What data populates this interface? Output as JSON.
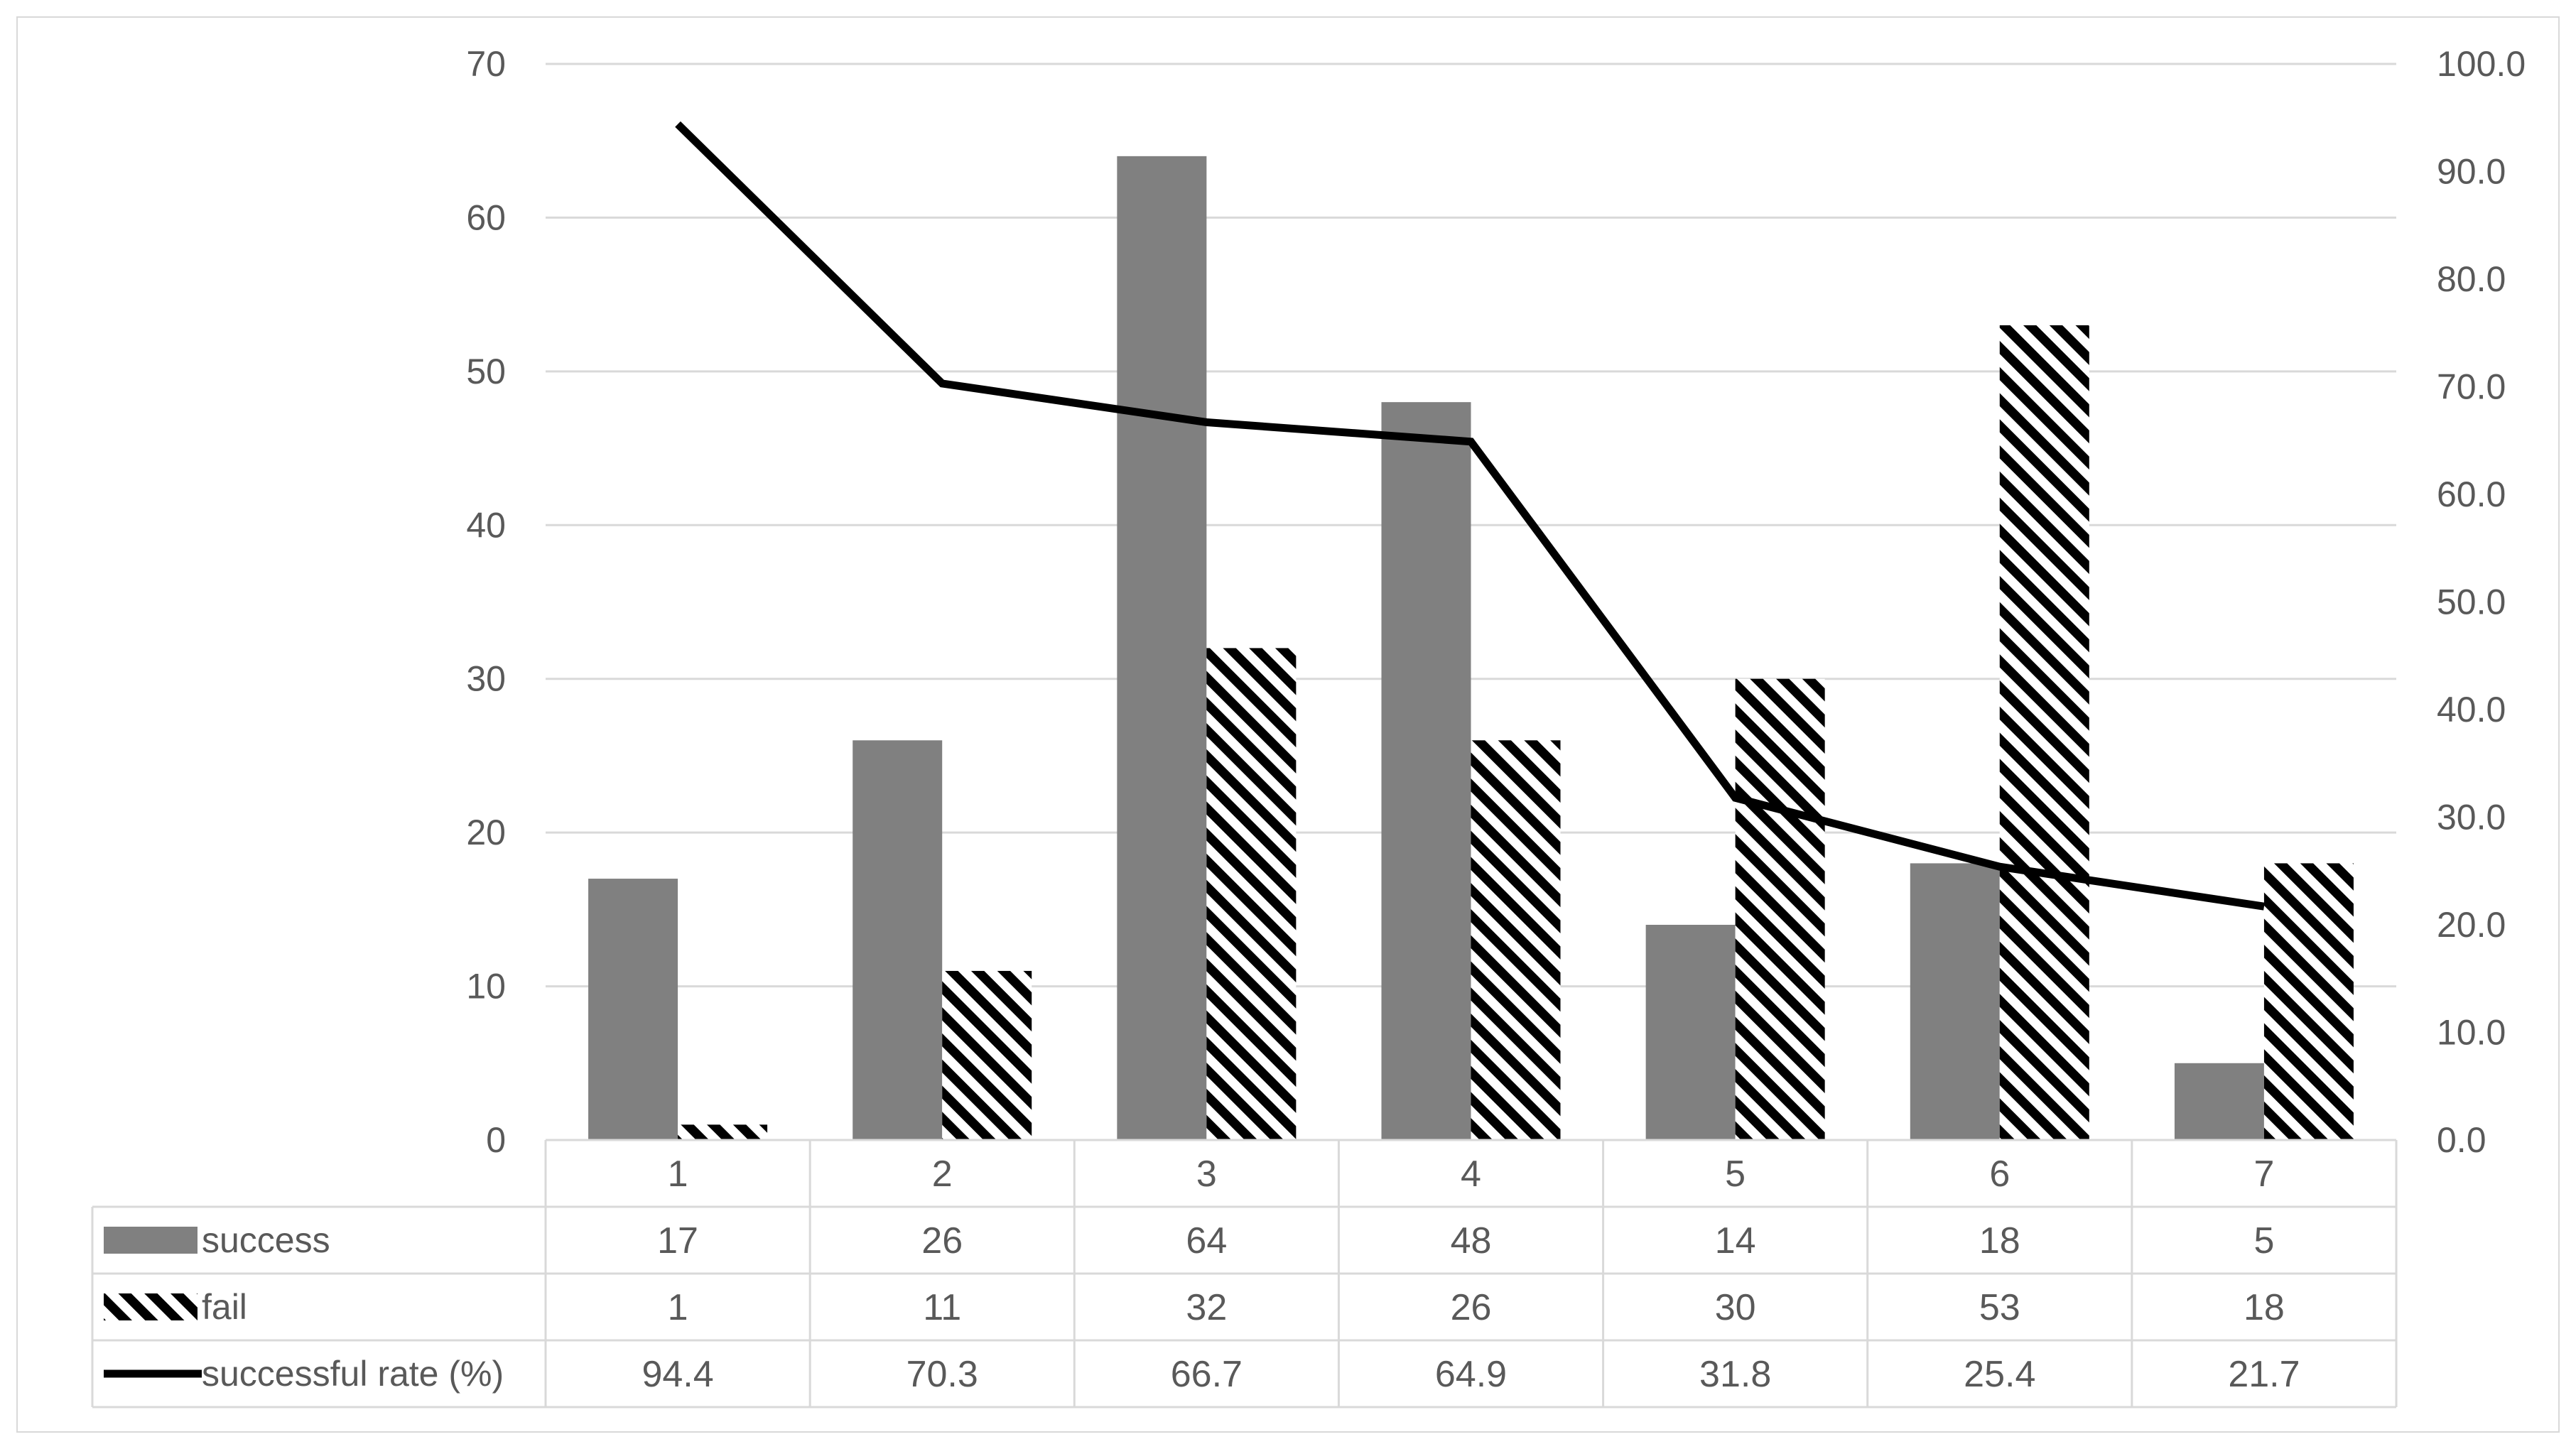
{
  "chart_data": {
    "type": "bar",
    "categories": [
      "1",
      "2",
      "3",
      "4",
      "5",
      "6",
      "7"
    ],
    "series": [
      {
        "name": "success",
        "kind": "bar",
        "axis": "left",
        "pattern": "solid-gray",
        "color": "#808080",
        "values": [
          17,
          26,
          64,
          48,
          14,
          18,
          5
        ]
      },
      {
        "name": "fail",
        "kind": "bar",
        "axis": "left",
        "pattern": "black-diagonal-hatch",
        "color": "#000000",
        "values": [
          1,
          11,
          32,
          26,
          30,
          53,
          18
        ]
      },
      {
        "name": "successful rate (%)",
        "kind": "line",
        "axis": "right",
        "color": "#000000",
        "values": [
          94.4,
          70.3,
          66.7,
          64.9,
          31.8,
          25.4,
          21.7
        ]
      }
    ],
    "left_axis": {
      "min": 0,
      "max": 70,
      "ticks": [
        "0",
        "10",
        "20",
        "30",
        "40",
        "50",
        "60",
        "70"
      ]
    },
    "right_axis": {
      "min": 0,
      "max": 100,
      "ticks": [
        "0.0",
        "10.0",
        "20.0",
        "30.0",
        "40.0",
        "50.0",
        "60.0",
        "70.0",
        "80.0",
        "90.0",
        "100.0"
      ]
    },
    "data_table": {
      "rows": [
        {
          "label": "success",
          "values": [
            "17",
            "26",
            "64",
            "48",
            "14",
            "18",
            "5"
          ]
        },
        {
          "label": "fail",
          "values": [
            "1",
            "11",
            "32",
            "26",
            "30",
            "53",
            "18"
          ]
        },
        {
          "label": "successful rate (%)",
          "values": [
            "94.4",
            "70.3",
            "66.7",
            "64.9",
            "31.8",
            "25.4",
            "21.7"
          ]
        }
      ]
    },
    "grid": "horizontal",
    "legend_placement": "in data table (left of rows)"
  }
}
